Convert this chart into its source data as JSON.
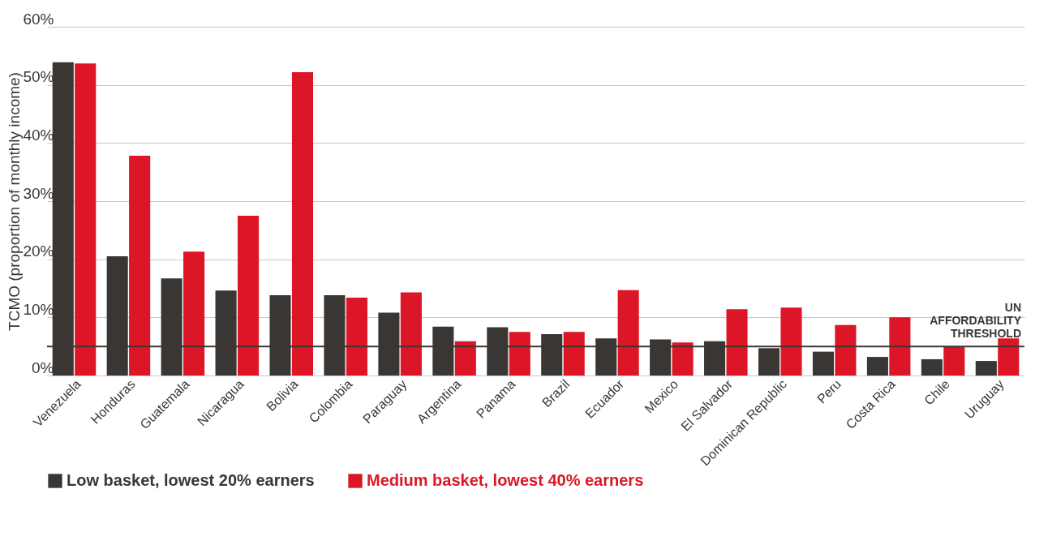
{
  "chart_data": {
    "type": "bar",
    "ylabel": "TCMO (proportion of monthly income)",
    "categories": [
      "Venezuela",
      "Honduras",
      "Guatemala",
      "Nicaragua",
      "Bolivia",
      "Colombia",
      "Paraguay",
      "Argentina",
      "Panama",
      "Brazil",
      "Ecuador",
      "Mexico",
      "El Salvador",
      "Dominican Republic",
      "Peru",
      "Costa Rica",
      "Chile",
      "Uruguay"
    ],
    "series": [
      {
        "name": "Low basket, lowest 20% earners",
        "color": "#3a3633",
        "values": [
          53.9,
          20.5,
          16.7,
          14.6,
          13.8,
          13.8,
          10.8,
          8.4,
          8.3,
          7.1,
          6.4,
          6.2,
          5.9,
          4.7,
          4.1,
          3.2,
          2.8,
          2.5
        ]
      },
      {
        "name": "Medium basket, lowest 40% earners",
        "color": "#dc1626",
        "values": [
          53.7,
          37.8,
          21.3,
          27.5,
          52.2,
          13.4,
          14.3,
          5.9,
          7.5,
          7.5,
          14.7,
          5.7,
          11.4,
          11.7,
          8.7,
          10.0,
          4.9,
          6.4
        ]
      }
    ],
    "ylim": [
      0,
      60
    ],
    "yticks": [
      {
        "value": 0,
        "label": "0%"
      },
      {
        "value": 10,
        "label": "10%"
      },
      {
        "value": 20,
        "label": "20%"
      },
      {
        "value": 30,
        "label": "30%"
      },
      {
        "value": 40,
        "label": "40%"
      },
      {
        "value": 50,
        "label": "50%"
      },
      {
        "value": 60,
        "label": "60%"
      }
    ],
    "grid": "y",
    "legend": "bottom",
    "ref_lines": [
      {
        "axis": "y",
        "value": 5,
        "label": "UN AFFORDABILITY THRESHOLD",
        "color": "#3a3633"
      }
    ]
  }
}
